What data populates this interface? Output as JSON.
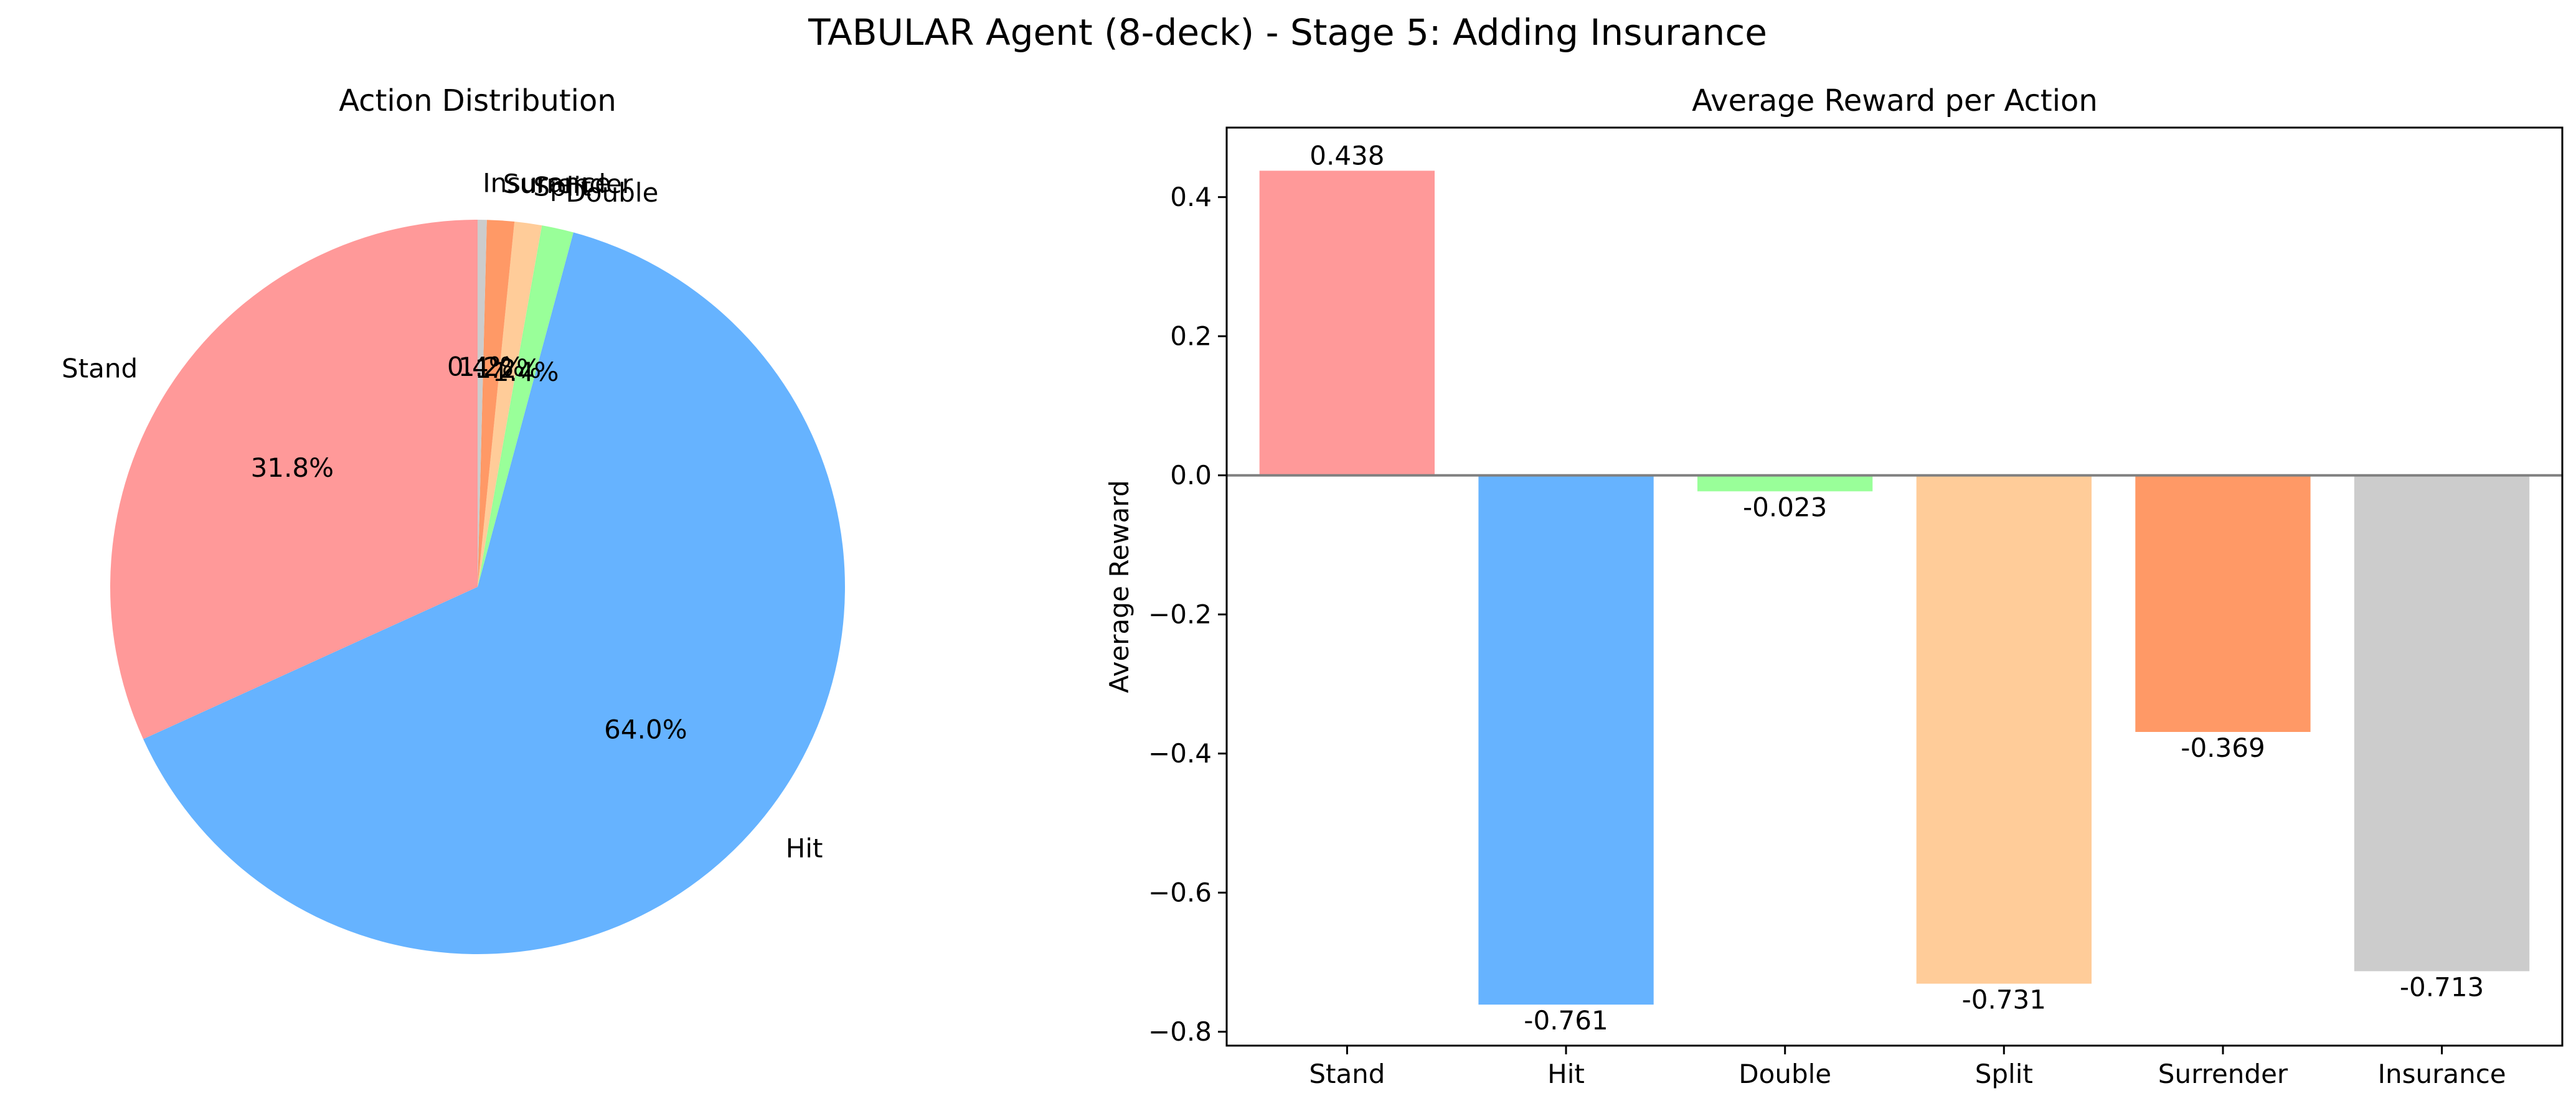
{
  "figure": {
    "title": "TABULAR Agent (8-deck) - Stage 5: Adding Insurance"
  },
  "colors": {
    "Stand": "#ff9999",
    "Hit": "#66b3ff",
    "Double": "#99ff99",
    "Split": "#ffcc99",
    "Surrender": "#ff9966",
    "Insurance": "#cccccc"
  },
  "chart_data": [
    {
      "type": "pie",
      "title": "Action Distribution",
      "labels": [
        "Stand",
        "Hit",
        "Double",
        "Split",
        "Surrender",
        "Insurance"
      ],
      "values": [
        31.8,
        64.0,
        1.4,
        1.2,
        1.2,
        0.4
      ],
      "percent_labels": [
        "31.8%",
        "64.0%",
        "1.4%",
        "1.2%",
        "1.2%",
        "0.4%"
      ],
      "start_angle_deg": 90,
      "direction": "counterclockwise"
    },
    {
      "type": "bar",
      "title": "Average Reward per Action",
      "categories": [
        "Stand",
        "Hit",
        "Double",
        "Split",
        "Surrender",
        "Insurance"
      ],
      "values": [
        0.438,
        -0.761,
        -0.023,
        -0.731,
        -0.369,
        -0.713
      ],
      "value_labels": [
        "0.438",
        "-0.761",
        "-0.023",
        "-0.731",
        "-0.369",
        "-0.713"
      ],
      "xlabel": "",
      "ylabel": "Average Reward",
      "ylim": [
        -0.82,
        0.5
      ],
      "yticks": [
        0.4,
        0.2,
        0.0,
        -0.2,
        -0.4,
        -0.6,
        -0.8
      ],
      "ytick_labels": [
        "0.4",
        "0.2",
        "0.0",
        "−0.2",
        "−0.4",
        "−0.6",
        "−0.8"
      ],
      "baseline": 0.0,
      "grid": false
    }
  ]
}
